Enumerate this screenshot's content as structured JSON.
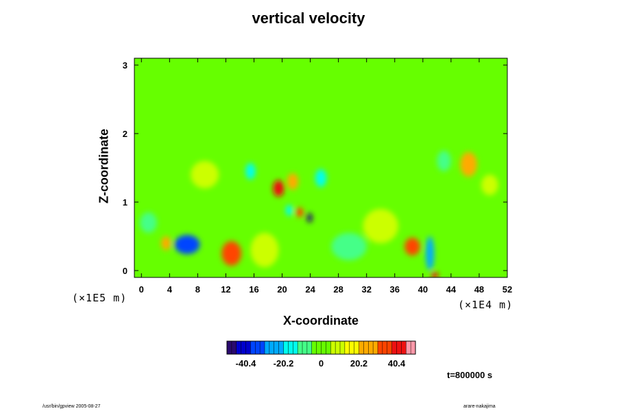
{
  "chart_data": {
    "type": "heatmap",
    "title": "vertical velocity",
    "xlabel": "X-coordinate",
    "ylabel": "Z-coordinate",
    "x_scale_note": "(×1E4 m)",
    "z_scale_note": "(×1E5 m)",
    "xlim": [
      -1,
      52
    ],
    "ylim": [
      -0.1,
      3.1
    ],
    "x_ticks": [
      0,
      4,
      8,
      12,
      16,
      20,
      24,
      28,
      32,
      36,
      40,
      44,
      48,
      52
    ],
    "y_ticks": [
      0,
      1,
      2,
      3
    ],
    "colorbar": {
      "min": -50.5,
      "max": 50.5,
      "ticks": [
        -40.4,
        -20.2,
        0,
        20.2,
        40.4
      ],
      "tick_labels": [
        "-40.4",
        "-20.2",
        "0",
        "20.2",
        "40.4"
      ],
      "colors": [
        "#2a0a6e",
        "#0000cc",
        "#0044ff",
        "#00aaff",
        "#00ffee",
        "#44ff88",
        "#66ff00",
        "#ccff00",
        "#ffff00",
        "#ffaa00",
        "#ff4400",
        "#ee1111",
        "#ff99aa"
      ]
    },
    "background_value": 3,
    "features": [
      {
        "x": 6.5,
        "z": 0.38,
        "value": -32,
        "rx": 1.8,
        "rz": 0.14
      },
      {
        "x": 3.5,
        "z": 0.4,
        "value": 25,
        "rx": 0.7,
        "rz": 0.1
      },
      {
        "x": 12.8,
        "z": 0.25,
        "value": 30,
        "rx": 1.4,
        "rz": 0.18
      },
      {
        "x": 19.5,
        "z": 1.2,
        "value": 38,
        "rx": 0.8,
        "rz": 0.12
      },
      {
        "x": 21.5,
        "z": 1.3,
        "value": 22,
        "rx": 0.8,
        "rz": 0.12
      },
      {
        "x": 23.9,
        "z": 0.77,
        "value": -48,
        "rx": 0.4,
        "rz": 0.07
      },
      {
        "x": 22.5,
        "z": 0.85,
        "value": 35,
        "rx": 0.5,
        "rz": 0.07
      },
      {
        "x": 21.0,
        "z": 0.88,
        "value": -20,
        "rx": 0.5,
        "rz": 0.08
      },
      {
        "x": 38.5,
        "z": 0.35,
        "value": 32,
        "rx": 1.1,
        "rz": 0.13
      },
      {
        "x": 41.0,
        "z": 0.25,
        "value": -22,
        "rx": 0.6,
        "rz": 0.25
      },
      {
        "x": 41.7,
        "z": -0.07,
        "value": 40,
        "rx": 0.5,
        "rz": 0.05
      },
      {
        "x": 46.5,
        "z": 1.55,
        "value": 24,
        "rx": 1.2,
        "rz": 0.18
      },
      {
        "x": 15.5,
        "z": 1.45,
        "value": -14,
        "rx": 0.7,
        "rz": 0.12
      },
      {
        "x": 25.5,
        "z": 1.35,
        "value": -14,
        "rx": 0.8,
        "rz": 0.13
      },
      {
        "x": 29.5,
        "z": 0.35,
        "value": -8,
        "rx": 2.5,
        "rz": 0.2
      },
      {
        "x": 1.0,
        "z": 0.7,
        "value": -10,
        "rx": 1.2,
        "rz": 0.15
      },
      {
        "x": 34.0,
        "z": 0.65,
        "value": 10,
        "rx": 2.5,
        "rz": 0.25
      },
      {
        "x": 9.0,
        "z": 1.4,
        "value": 8,
        "rx": 2.0,
        "rz": 0.2
      },
      {
        "x": 43.0,
        "z": 1.6,
        "value": -9,
        "rx": 1.0,
        "rz": 0.15
      },
      {
        "x": 17.5,
        "z": 0.3,
        "value": 12,
        "rx": 2.0,
        "rz": 0.25
      },
      {
        "x": 49.5,
        "z": 1.25,
        "value": 10,
        "rx": 1.2,
        "rz": 0.15
      }
    ]
  },
  "time_stamp": "t=800000 s",
  "footer_left": "/usr/bin/gpview 2005-08-27",
  "footer_right": "arare-nakajima"
}
